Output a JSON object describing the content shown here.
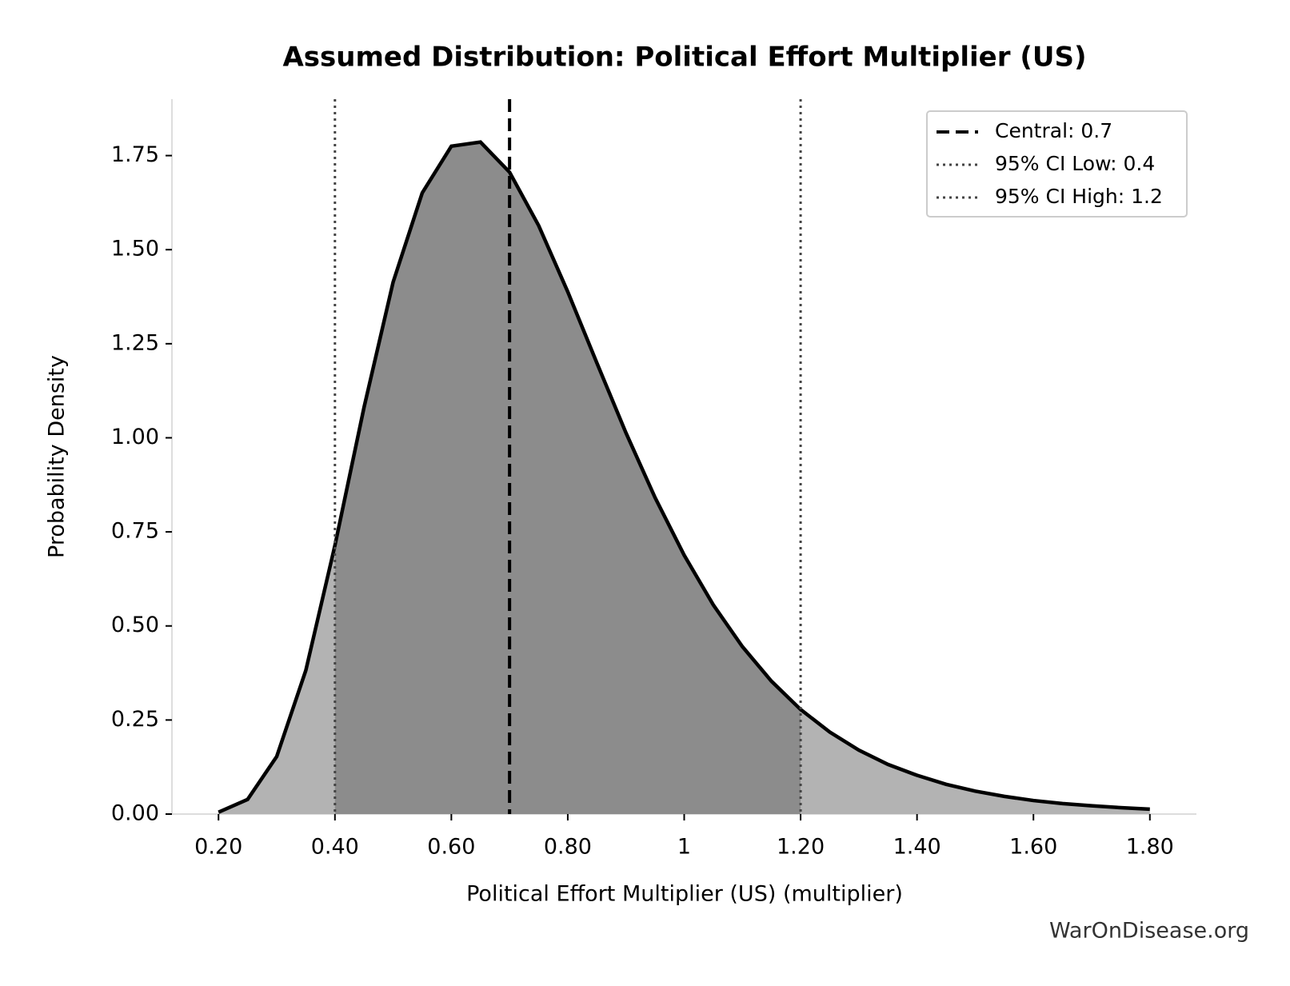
{
  "chart_data": {
    "type": "area",
    "title": "Assumed Distribution: Political Effort Multiplier (US)",
    "xlabel": "Political Effort Multiplier (US) (multiplier)",
    "ylabel": "Probability Density",
    "watermark": "WarOnDisease.org",
    "x": [
      0.2,
      0.25,
      0.3,
      0.35,
      0.4,
      0.45,
      0.5,
      0.55,
      0.6,
      0.65,
      0.7,
      0.75,
      0.8,
      0.85,
      0.9,
      0.95,
      1.0,
      1.05,
      1.1,
      1.15,
      1.2,
      1.25,
      1.3,
      1.35,
      1.4,
      1.45,
      1.5,
      1.55,
      1.6,
      1.65,
      1.7,
      1.75,
      1.8
    ],
    "series": [
      {
        "name": "density",
        "color": "#000000",
        "values": [
          0.005,
          0.039,
          0.153,
          0.382,
          0.714,
          1.081,
          1.414,
          1.651,
          1.775,
          1.786,
          1.706,
          1.564,
          1.388,
          1.199,
          1.013,
          0.841,
          0.688,
          0.556,
          0.445,
          0.353,
          0.278,
          0.218,
          0.17,
          0.132,
          0.103,
          0.079,
          0.061,
          0.047,
          0.036,
          0.028,
          0.022,
          0.017,
          0.013
        ]
      }
    ],
    "fill_color": "#b3b3b3",
    "ci_fill_color": "#8c8c8c",
    "vlines": [
      {
        "name": "Central: 0.7",
        "value": 0.7,
        "style": "dashed",
        "color": "#000000"
      },
      {
        "name": "95% CI Low: 0.4",
        "value": 0.4,
        "style": "dotted",
        "color": "#444444"
      },
      {
        "name": "95% CI High: 1.2",
        "value": 1.2,
        "style": "dotted",
        "color": "#444444"
      }
    ],
    "xlim": [
      0.12,
      1.88
    ],
    "ylim": [
      0,
      1.9
    ],
    "xticks": [
      {
        "value": 0.2,
        "label": "0.20"
      },
      {
        "value": 0.4,
        "label": "0.40"
      },
      {
        "value": 0.6,
        "label": "0.60"
      },
      {
        "value": 0.8,
        "label": "0.80"
      },
      1,
      {
        "value": 1.2,
        "label": "1.20"
      },
      {
        "value": 1.4,
        "label": "1.40"
      },
      {
        "value": 1.6,
        "label": "1.60"
      },
      {
        "value": 1.8,
        "label": "1.80"
      }
    ],
    "yticks": [
      {
        "value": 0,
        "label": "0.00"
      },
      0.25,
      {
        "value": 0.5,
        "label": "0.50"
      },
      0.75,
      {
        "value": 1,
        "label": "1.00"
      },
      1.25,
      {
        "value": 1.5,
        "label": "1.50"
      },
      1.75
    ],
    "legend": "upper right",
    "grid": false
  }
}
